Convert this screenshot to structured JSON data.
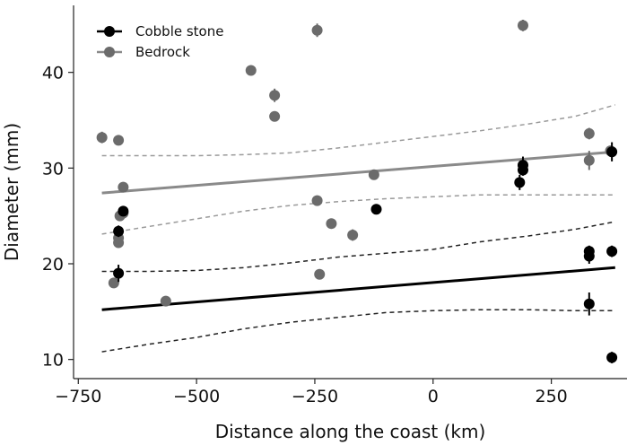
{
  "chart_data": {
    "type": "scatter",
    "xlabel": "Distance along the coast (km)",
    "ylabel": "Diameter (mm)",
    "xlim": [
      -760,
      410
    ],
    "ylim": [
      8,
      47
    ],
    "x_ticks": [
      -750,
      -500,
      -250,
      0,
      250
    ],
    "x_tick_labels": [
      "−750",
      "−500",
      "−250",
      "0",
      "250"
    ],
    "y_ticks": [
      10,
      20,
      30,
      40
    ],
    "y_tick_labels": [
      "10",
      "20",
      "30",
      "40"
    ],
    "grid": false,
    "legend_position": "top-left",
    "series": [
      {
        "name": "Cobble stone",
        "color": "#000000",
        "points": [
          {
            "x": -665,
            "y": 23.4,
            "err": 0.6
          },
          {
            "x": -665,
            "y": 19.0,
            "err": 0.9
          },
          {
            "x": -655,
            "y": 25.5,
            "err": 0.4
          },
          {
            "x": -120,
            "y": 25.7,
            "err": 0.4
          },
          {
            "x": 183,
            "y": 28.5,
            "err": 0.8
          },
          {
            "x": 190,
            "y": 29.8,
            "err": 0.6
          },
          {
            "x": 190,
            "y": 30.3,
            "err": 0.9
          },
          {
            "x": 330,
            "y": 20.8,
            "err": 0.8
          },
          {
            "x": 330,
            "y": 21.3,
            "err": 0.6
          },
          {
            "x": 330,
            "y": 15.8,
            "err": 1.2
          },
          {
            "x": 378,
            "y": 21.3,
            "err": 0.6
          },
          {
            "x": 378,
            "y": 31.7,
            "err": 1.0
          },
          {
            "x": 378,
            "y": 10.2,
            "err": 0.6
          }
        ],
        "trend": {
          "x": [
            -700,
            385
          ],
          "y": [
            15.2,
            19.6
          ]
        },
        "ci_upper": {
          "x": [
            -700,
            -600,
            -500,
            -400,
            -300,
            -200,
            -100,
            0,
            100,
            200,
            300,
            385
          ],
          "y": [
            19.2,
            19.2,
            19.3,
            19.6,
            20.1,
            20.7,
            21.1,
            21.5,
            22.3,
            22.9,
            23.6,
            24.4
          ]
        },
        "ci_lower": {
          "x": [
            -700,
            -600,
            -500,
            -400,
            -300,
            -200,
            -100,
            0,
            100,
            200,
            300,
            385
          ],
          "y": [
            10.8,
            11.6,
            12.3,
            13.2,
            13.9,
            14.4,
            14.9,
            15.1,
            15.2,
            15.2,
            15.1,
            15.1
          ]
        }
      },
      {
        "name": "Bedrock",
        "color": "#6b6b6b",
        "points": [
          {
            "x": -700,
            "y": 33.2,
            "err": 0.6
          },
          {
            "x": -675,
            "y": 18.0,
            "err": 0.3
          },
          {
            "x": -665,
            "y": 32.9,
            "err": 0.3
          },
          {
            "x": -665,
            "y": 22.2,
            "err": 0.3
          },
          {
            "x": -665,
            "y": 22.7,
            "err": 0.3
          },
          {
            "x": -662,
            "y": 25.0,
            "err": 0.3
          },
          {
            "x": -655,
            "y": 28.0,
            "err": 0.5
          },
          {
            "x": -655,
            "y": 25.3,
            "err": 0.3
          },
          {
            "x": -565,
            "y": 16.1,
            "err": 0.3
          },
          {
            "x": -385,
            "y": 40.2,
            "err": 0.3
          },
          {
            "x": -335,
            "y": 37.6,
            "err": 0.7
          },
          {
            "x": -335,
            "y": 35.4,
            "err": 0.3
          },
          {
            "x": -245,
            "y": 44.4,
            "err": 0.7
          },
          {
            "x": -245,
            "y": 26.6,
            "err": 0.3
          },
          {
            "x": -240,
            "y": 18.9,
            "err": 0.3
          },
          {
            "x": -215,
            "y": 24.2,
            "err": 0.3
          },
          {
            "x": -170,
            "y": 23.0,
            "err": 0.6
          },
          {
            "x": -125,
            "y": 29.3,
            "err": 0.3
          },
          {
            "x": 190,
            "y": 44.9,
            "err": 0.6
          },
          {
            "x": 330,
            "y": 33.6,
            "err": 0.6
          },
          {
            "x": 330,
            "y": 30.8,
            "err": 1.0
          },
          {
            "x": 375,
            "y": 31.8,
            "err": 0.3
          }
        ],
        "trend": {
          "x": [
            -700,
            385
          ],
          "y": [
            27.4,
            31.7
          ]
        },
        "ci_upper": {
          "x": [
            -700,
            -600,
            -500,
            -400,
            -300,
            -200,
            -100,
            0,
            100,
            200,
            300,
            385
          ],
          "y": [
            31.3,
            31.3,
            31.3,
            31.4,
            31.6,
            32.1,
            32.7,
            33.3,
            33.9,
            34.6,
            35.4,
            36.6
          ]
        },
        "ci_lower": {
          "x": [
            -700,
            -600,
            -500,
            -400,
            -300,
            -200,
            -100,
            0,
            100,
            200,
            300,
            385
          ],
          "y": [
            23.1,
            23.9,
            24.7,
            25.5,
            26.1,
            26.5,
            26.8,
            27.0,
            27.2,
            27.2,
            27.2,
            27.2
          ]
        }
      }
    ]
  }
}
